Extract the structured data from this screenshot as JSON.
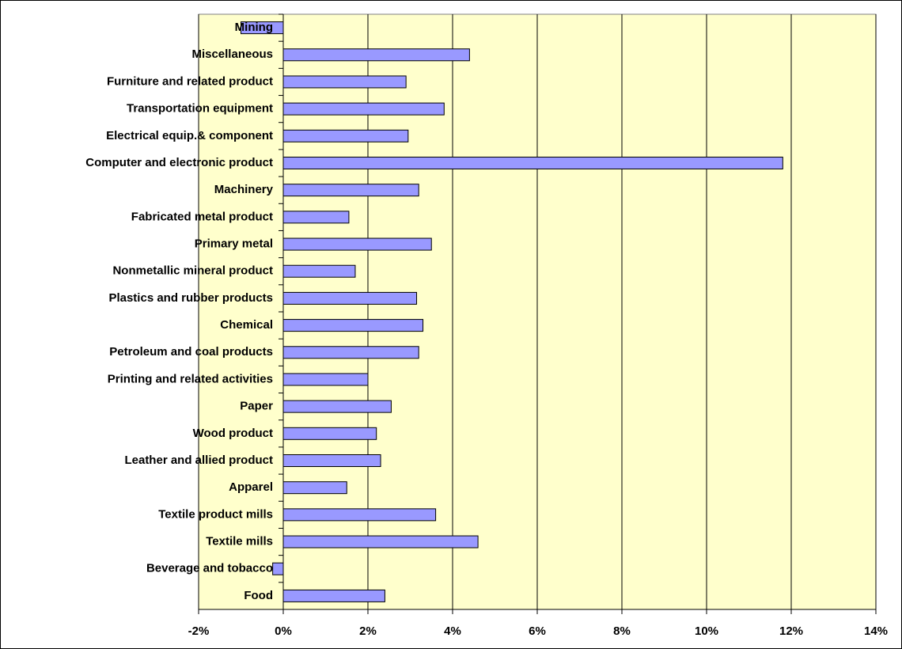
{
  "chart_data": {
    "type": "barh",
    "categories": [
      "Food",
      "Beverage and tobacco",
      "Textile mills",
      "Textile product mills",
      "Apparel",
      "Leather and allied product",
      "Wood product",
      "Paper",
      "Printing and related activities",
      "Petroleum and coal products",
      "Chemical",
      "Plastics and rubber products",
      "Nonmetallic mineral product",
      "Primary metal",
      "Fabricated metal product",
      "Machinery",
      "Computer and electronic product",
      "Electrical equip.& component",
      "Transportation equipment",
      "Furniture and related product",
      "Miscellaneous",
      "Mining"
    ],
    "values": [
      2.4,
      -0.25,
      4.6,
      3.6,
      1.5,
      2.3,
      2.2,
      2.55,
      2.0,
      3.2,
      3.3,
      3.15,
      1.7,
      3.5,
      1.55,
      3.2,
      11.8,
      2.95,
      3.8,
      2.9,
      4.4,
      -1.0
    ],
    "color": "#9999ff",
    "xlim": [
      -2,
      14
    ],
    "xticks": [
      {
        "value": -2,
        "label": "-2%"
      },
      {
        "value": 0,
        "label": "0%"
      },
      {
        "value": 2,
        "label": "2%"
      },
      {
        "value": 4,
        "label": "4%"
      },
      {
        "value": 6,
        "label": "6%"
      },
      {
        "value": 8,
        "label": "8%"
      },
      {
        "value": 10,
        "label": "10%"
      },
      {
        "value": 12,
        "label": "12%"
      },
      {
        "value": 14,
        "label": "14%"
      }
    ],
    "grid": true
  }
}
